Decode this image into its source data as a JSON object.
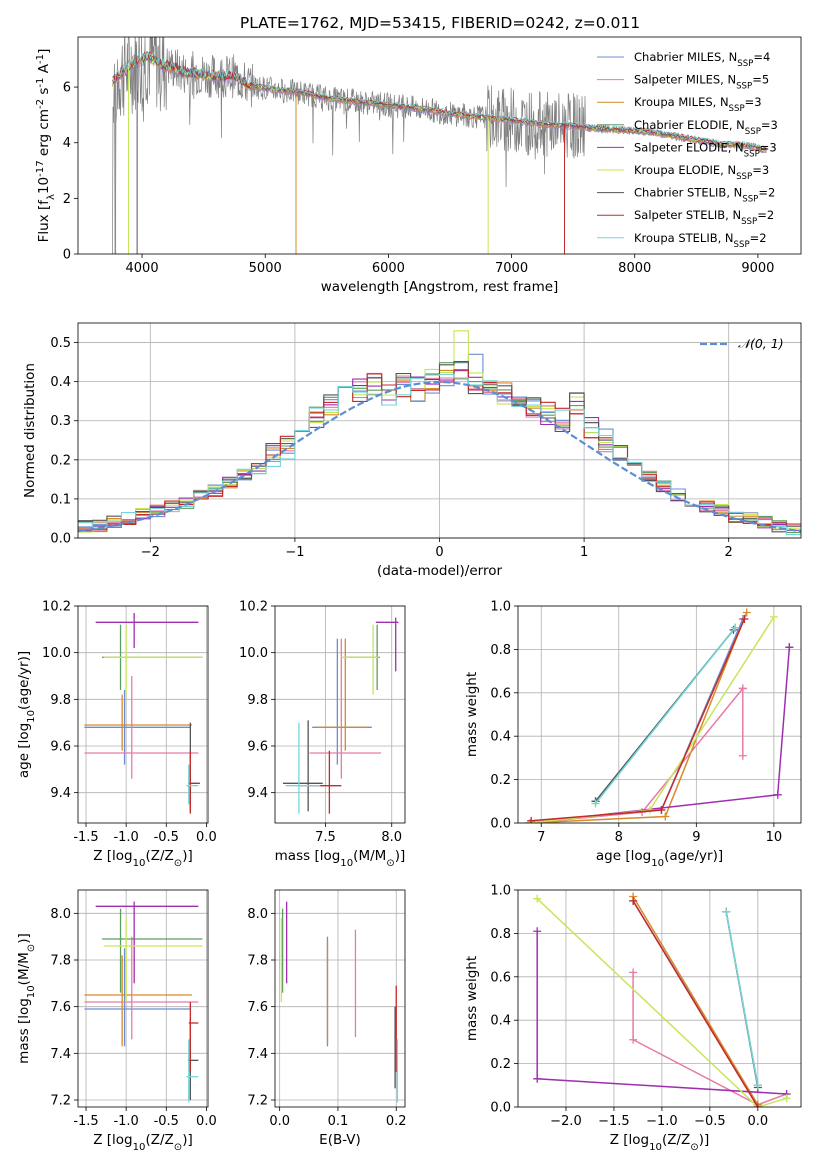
{
  "title": "PLATE=1762, MJD=53415, FIBERID=0242, z=0.011",
  "series": [
    {
      "name": "Chabrier MILES, N$_{SSP}$=4",
      "color": "#6b8fd6"
    },
    {
      "name": "Salpeter MILES, N$_{SSP}$=5",
      "color": "#e87aa8"
    },
    {
      "name": "Kroupa MILES, N$_{SSP}$=3",
      "color": "#d68a2a"
    },
    {
      "name": "Chabrier ELODIE, N$_{SSP}$=3",
      "color": "#5e9e5e"
    },
    {
      "name": "Salpeter ELODIE, N$_{SSP}$=3",
      "color": "#9e30b0"
    },
    {
      "name": "Kroupa ELODIE, N$_{SSP}$=3",
      "color": "#c6e65a"
    },
    {
      "name": "Chabrier STELIB, N$_{SSP}$=2",
      "color": "#555555"
    },
    {
      "name": "Salpeter STELIB, N$_{SSP}$=2",
      "color": "#c42a2a"
    },
    {
      "name": "Kroupa STELIB, N$_{SSP}$=2",
      "color": "#74d6dc"
    }
  ],
  "chart_data": [
    {
      "id": "spectrum",
      "type": "line",
      "title": "PLATE=1762, MJD=53415, FIBERID=0242, z=0.011",
      "xlabel": "wavelength [Angstrom, rest frame]",
      "ylabel": "Flux [f$_\\lambda$10$^{-17}$ erg cm$^{-2}$ s$^{-1}$ A$^{-1}$]",
      "xlim": [
        3480,
        9350
      ],
      "ylim": [
        0,
        7.8
      ],
      "xticks": [
        4000,
        5000,
        6000,
        7000,
        8000,
        9000
      ],
      "yticks": [
        0,
        2,
        4,
        6
      ],
      "grid": false,
      "legend": "upper right",
      "model_x": [
        3760,
        3850,
        3950,
        4050,
        4150,
        4250,
        4350,
        4450,
        4550,
        4650,
        4750,
        4850,
        4950,
        5100,
        5300,
        5500,
        5700,
        5900,
        6100,
        6300,
        6500,
        6700,
        6900,
        7100,
        7300,
        7500,
        7700,
        7900,
        8100,
        8300,
        8500,
        8700,
        8900,
        9070
      ],
      "model_y": [
        6.2,
        6.6,
        6.9,
        7.1,
        6.8,
        6.7,
        6.5,
        6.5,
        6.4,
        6.4,
        6.4,
        6.1,
        6.0,
        5.9,
        5.8,
        5.6,
        5.5,
        5.4,
        5.3,
        5.2,
        5.05,
        4.95,
        4.85,
        4.75,
        4.65,
        4.6,
        4.5,
        4.45,
        4.4,
        4.25,
        4.1,
        3.95,
        3.9,
        3.75
      ],
      "dips": [
        {
          "x": 3785,
          "series": 0
        },
        {
          "x": 3890,
          "series": 5
        },
        {
          "x": 3960,
          "series": 6
        },
        {
          "x": 5250,
          "series": 2
        },
        {
          "x": 6810,
          "series": 5
        },
        {
          "x": 7430,
          "series": 7
        }
      ]
    },
    {
      "id": "residuals",
      "type": "line",
      "xlabel": "(data-model)/error",
      "ylabel": "Normed distribution",
      "xlim": [
        -2.5,
        2.5
      ],
      "ylim": [
        0,
        0.55
      ],
      "xticks": [
        -2,
        -1,
        0,
        1,
        2
      ],
      "xtick_labels": [
        "−2",
        "−1",
        "0",
        "1",
        "2"
      ],
      "yticks": [
        0.0,
        0.1,
        0.2,
        0.3,
        0.4,
        0.5
      ],
      "ytick_labels": [
        "0.0",
        "0.1",
        "0.2",
        "0.3",
        "0.4",
        "0.5"
      ],
      "grid": true,
      "legend": "upper right",
      "gauss_label": "𝒩(0, 1)",
      "bin_centers": [
        -2.45,
        -2.35,
        -2.25,
        -2.15,
        -2.05,
        -1.95,
        -1.85,
        -1.75,
        -1.65,
        -1.55,
        -1.45,
        -1.35,
        -1.25,
        -1.15,
        -1.05,
        -0.95,
        -0.85,
        -0.75,
        -0.65,
        -0.55,
        -0.45,
        -0.35,
        -0.25,
        -0.15,
        -0.05,
        0.05,
        0.15,
        0.25,
        0.35,
        0.45,
        0.55,
        0.65,
        0.75,
        0.85,
        0.95,
        1.05,
        1.15,
        1.25,
        1.35,
        1.45,
        1.55,
        1.65,
        1.75,
        1.85,
        1.95,
        2.05,
        2.15,
        2.25,
        2.35,
        2.45
      ],
      "hist_base": [
        0.03,
        0.03,
        0.04,
        0.05,
        0.06,
        0.07,
        0.08,
        0.09,
        0.11,
        0.12,
        0.14,
        0.16,
        0.18,
        0.21,
        0.23,
        0.27,
        0.31,
        0.34,
        0.37,
        0.38,
        0.39,
        0.37,
        0.39,
        0.38,
        0.4,
        0.42,
        0.43,
        0.4,
        0.38,
        0.37,
        0.35,
        0.33,
        0.32,
        0.3,
        0.34,
        0.28,
        0.25,
        0.22,
        0.19,
        0.16,
        0.13,
        0.11,
        0.09,
        0.08,
        0.07,
        0.05,
        0.05,
        0.04,
        0.03,
        0.02
      ]
    },
    {
      "id": "age_vs_Z",
      "type": "scatter",
      "xlabel": "Z [log$_{10}$(Z/Z$_\\odot$)]",
      "ylabel": "age  [log$_{10}$(age/yr)]",
      "xlim": [
        -1.6,
        0.02
      ],
      "ylim": [
        9.27,
        10.2
      ],
      "xticks": [
        -1.5,
        -1.0,
        -0.5,
        0.0
      ],
      "yticks": [
        9.4,
        9.6,
        9.8,
        10.0,
        10.2
      ],
      "grid": true,
      "points": [
        {
          "s": 0,
          "x": -1.02,
          "y": 9.68,
          "xlo": -1.52,
          "xhi": -0.2,
          "ylo": 9.52,
          "yhi": 9.84
        },
        {
          "s": 1,
          "x": -0.93,
          "y": 9.57,
          "xlo": -1.52,
          "xhi": -0.1,
          "ylo": 9.46,
          "yhi": 9.9
        },
        {
          "s": 2,
          "x": -1.05,
          "y": 9.69,
          "xlo": -1.52,
          "xhi": -0.18,
          "ylo": 9.58,
          "yhi": 9.82
        },
        {
          "s": 3,
          "x": -1.07,
          "y": 9.98,
          "xlo": -1.3,
          "xhi": -0.05,
          "ylo": 9.84,
          "yhi": 10.12
        },
        {
          "s": 4,
          "x": -0.9,
          "y": 10.13,
          "xlo": -1.38,
          "xhi": -0.1,
          "ylo": 10.02,
          "yhi": 10.17
        },
        {
          "s": 5,
          "x": -1.0,
          "y": 9.98,
          "xlo": -1.28,
          "xhi": -0.05,
          "ylo": 9.82,
          "yhi": 10.12
        },
        {
          "s": 6,
          "x": -0.2,
          "y": 9.44,
          "xlo": -0.23,
          "xhi": -0.08,
          "ylo": 9.32,
          "yhi": 9.7
        },
        {
          "s": 7,
          "x": -0.2,
          "y": 9.44,
          "xlo": -0.22,
          "xhi": -0.1,
          "ylo": 9.31,
          "yhi": 9.58
        },
        {
          "s": 8,
          "x": -0.22,
          "y": 9.43,
          "xlo": -0.25,
          "xhi": -0.1,
          "ylo": 9.35,
          "yhi": 9.52
        }
      ]
    },
    {
      "id": "age_vs_mass",
      "type": "scatter",
      "xlabel": "mass [log$_{10}$(M/M$_\\odot$)]",
      "ylabel": "",
      "xlim": [
        7.12,
        8.1
      ],
      "ylim": [
        9.27,
        10.2
      ],
      "xticks": [
        7.5,
        8.0
      ],
      "yticks": [
        9.4,
        9.6,
        9.8,
        10.0,
        10.2
      ],
      "grid": true,
      "points": [
        {
          "s": 0,
          "x": 7.59,
          "y": 9.68,
          "xlo": 7.4,
          "xhi": 7.85,
          "ylo": 9.52,
          "yhi": 10.06
        },
        {
          "s": 1,
          "x": 7.62,
          "y": 9.57,
          "xlo": 7.38,
          "xhi": 7.92,
          "ylo": 9.46,
          "yhi": 10.06
        },
        {
          "s": 2,
          "x": 7.65,
          "y": 9.68,
          "xlo": 7.43,
          "xhi": 7.82,
          "ylo": 9.58,
          "yhi": 10.06
        },
        {
          "s": 3,
          "x": 7.89,
          "y": 9.98,
          "xlo": 7.65,
          "xhi": 7.91,
          "ylo": 9.84,
          "yhi": 10.12
        },
        {
          "s": 4,
          "x": 8.03,
          "y": 10.13,
          "xlo": 7.88,
          "xhi": 8.05,
          "ylo": 9.92,
          "yhi": 10.15
        },
        {
          "s": 5,
          "x": 7.86,
          "y": 9.98,
          "xlo": 7.62,
          "xhi": 7.9,
          "ylo": 9.82,
          "yhi": 10.12
        },
        {
          "s": 6,
          "x": 7.37,
          "y": 9.44,
          "xlo": 7.18,
          "xhi": 7.48,
          "ylo": 9.32,
          "yhi": 9.71
        },
        {
          "s": 7,
          "x": 7.53,
          "y": 9.43,
          "xlo": 7.3,
          "xhi": 7.62,
          "ylo": 9.31,
          "yhi": 9.58
        },
        {
          "s": 8,
          "x": 7.3,
          "y": 9.43,
          "xlo": 7.2,
          "xhi": 7.46,
          "ylo": 9.31,
          "yhi": 9.7
        }
      ]
    },
    {
      "id": "weight_vs_age",
      "type": "line",
      "xlabel": "age  [log$_{10}$(age/yr)]",
      "ylabel": "mass weight",
      "xlim": [
        6.7,
        10.35
      ],
      "ylim": [
        0,
        1
      ],
      "xticks": [
        7,
        8,
        9,
        10
      ],
      "yticks": [
        0.0,
        0.2,
        0.4,
        0.6,
        0.8,
        1.0
      ],
      "grid": true,
      "series_points": [
        {
          "s": 0,
          "x": [
            6.85,
            8.55,
            9.6
          ],
          "y": [
            0.0,
            0.06,
            0.94
          ]
        },
        {
          "s": 1,
          "x": [
            6.85,
            8.3,
            9.6,
            9.6,
            9.6
          ],
          "y": [
            0.0,
            0.05,
            0.62,
            0.31,
            0.62
          ]
        },
        {
          "s": 2,
          "x": [
            6.85,
            8.6,
            9.65
          ],
          "y": [
            0.0,
            0.03,
            0.97
          ]
        },
        {
          "s": 3,
          "x": [
            7.7,
            9.5
          ],
          "y": [
            0.1,
            0.9
          ]
        },
        {
          "s": 4,
          "x": [
            6.85,
            10.05,
            10.2,
            10.2
          ],
          "y": [
            0.0,
            0.13,
            0.81,
            0.81
          ]
        },
        {
          "s": 5,
          "x": [
            6.85,
            8.4,
            10.0
          ],
          "y": [
            0.0,
            0.06,
            0.95
          ]
        },
        {
          "s": 6,
          "x": [
            7.7,
            9.48
          ],
          "y": [
            0.1,
            0.89
          ]
        },
        {
          "s": 7,
          "x": [
            6.87,
            8.55,
            9.62
          ],
          "y": [
            0.01,
            0.06,
            0.94
          ]
        },
        {
          "s": 8,
          "x": [
            7.7,
            9.5
          ],
          "y": [
            0.09,
            0.9
          ]
        }
      ]
    },
    {
      "id": "mass_vs_Z",
      "type": "scatter",
      "xlabel": "Z [log$_{10}$(Z/Z$_\\odot$)]",
      "ylabel": "mass [log$_{10}$(M/M$_\\odot$)]",
      "xlim": [
        -1.6,
        0.02
      ],
      "ylim": [
        7.17,
        8.1
      ],
      "xticks": [
        -1.5,
        -1.0,
        -0.5,
        0.0
      ],
      "yticks": [
        7.2,
        7.4,
        7.6,
        7.8,
        8.0
      ],
      "grid": true,
      "points": [
        {
          "s": 0,
          "x": -1.02,
          "y": 7.59,
          "xlo": -1.52,
          "xhi": -0.2,
          "ylo": 7.43,
          "yhi": 7.85
        },
        {
          "s": 1,
          "x": -0.93,
          "y": 7.62,
          "xlo": -1.52,
          "xhi": -0.1,
          "ylo": 7.46,
          "yhi": 7.9
        },
        {
          "s": 2,
          "x": -1.05,
          "y": 7.65,
          "xlo": -1.52,
          "xhi": -0.18,
          "ylo": 7.43,
          "yhi": 7.82
        },
        {
          "s": 3,
          "x": -1.07,
          "y": 7.89,
          "xlo": -1.3,
          "xhi": -0.05,
          "ylo": 7.66,
          "yhi": 8.02
        },
        {
          "s": 4,
          "x": -0.9,
          "y": 8.03,
          "xlo": -1.38,
          "xhi": -0.1,
          "ylo": 7.7,
          "yhi": 8.05
        },
        {
          "s": 5,
          "x": -1.0,
          "y": 7.86,
          "xlo": -1.28,
          "xhi": -0.05,
          "ylo": 7.62,
          "yhi": 7.98
        },
        {
          "s": 6,
          "x": -0.2,
          "y": 7.37,
          "xlo": -0.23,
          "xhi": -0.1,
          "ylo": 7.2,
          "yhi": 7.55
        },
        {
          "s": 7,
          "x": -0.2,
          "y": 7.53,
          "xlo": -0.22,
          "xhi": -0.1,
          "ylo": 7.32,
          "yhi": 7.62
        },
        {
          "s": 8,
          "x": -0.22,
          "y": 7.3,
          "xlo": -0.25,
          "xhi": -0.1,
          "ylo": 7.19,
          "yhi": 7.46
        }
      ]
    },
    {
      "id": "mass_vs_ebv",
      "type": "scatter",
      "xlabel": "E(B-V)",
      "ylabel": "",
      "xlim": [
        -0.008,
        0.215
      ],
      "ylim": [
        7.17,
        8.1
      ],
      "xticks": [
        0.0,
        0.1,
        0.2
      ],
      "xtick_labels": [
        "0.0",
        "0.1",
        "0.2"
      ],
      "yticks": [
        7.2,
        7.4,
        7.6,
        7.8,
        8.0
      ],
      "grid": true,
      "points": [
        {
          "s": 0,
          "x": 0.082,
          "y": 7.59,
          "ylo": 7.43,
          "yhi": 7.9
        },
        {
          "s": 1,
          "x": 0.13,
          "y": 7.62,
          "ylo": 7.47,
          "yhi": 7.93
        },
        {
          "s": 2,
          "x": 0.082,
          "y": 7.65,
          "ylo": 7.44,
          "yhi": 7.88
        },
        {
          "s": 3,
          "x": 0.005,
          "y": 7.89,
          "ylo": 7.66,
          "yhi": 8.02
        },
        {
          "s": 4,
          "x": 0.012,
          "y": 8.03,
          "ylo": 7.7,
          "yhi": 8.05
        },
        {
          "s": 5,
          "x": 0.003,
          "y": 7.86,
          "ylo": 7.62,
          "yhi": 7.98
        },
        {
          "s": 6,
          "x": 0.198,
          "y": 7.37,
          "ylo": 7.25,
          "yhi": 7.6
        },
        {
          "s": 7,
          "x": 0.2,
          "y": 7.53,
          "ylo": 7.32,
          "yhi": 7.69
        },
        {
          "s": 8,
          "x": 0.202,
          "y": 7.3,
          "ylo": 7.19,
          "yhi": 7.46
        }
      ]
    },
    {
      "id": "weight_vs_Z",
      "type": "line",
      "xlabel": "Z [log$_{10}$(Z/Z$_\\odot$)]",
      "ylabel": "mass weight",
      "xlim": [
        -2.5,
        0.45
      ],
      "ylim": [
        0,
        1
      ],
      "xticks": [
        -2.0,
        -1.5,
        -1.0,
        -0.5,
        0.0
      ],
      "xtick_labels": [
        "−2.0",
        "−1.5",
        "−1.0",
        "−0.5",
        "0.0"
      ],
      "yticks": [
        0.0,
        0.2,
        0.4,
        0.6,
        0.8,
        1.0
      ],
      "grid": true,
      "series_points": [
        {
          "s": 0,
          "x": [
            -1.3,
            0.0
          ],
          "y": [
            0.95,
            0.01
          ]
        },
        {
          "s": 1,
          "x": [
            -1.3,
            -1.3,
            0.0,
            0.3
          ],
          "y": [
            0.62,
            0.31,
            0.01,
            0.06
          ]
        },
        {
          "s": 2,
          "x": [
            -1.3,
            0.0
          ],
          "y": [
            0.97,
            0.01
          ]
        },
        {
          "s": 3,
          "x": [
            -0.33,
            0.0
          ],
          "y": [
            0.9,
            0.1
          ]
        },
        {
          "s": 4,
          "x": [
            -2.3,
            -2.3,
            0.3
          ],
          "y": [
            0.81,
            0.13,
            0.06
          ]
        },
        {
          "s": 5,
          "x": [
            -2.3,
            0.0,
            0.3
          ],
          "y": [
            0.96,
            0.0,
            0.04
          ]
        },
        {
          "s": 6,
          "x": [
            -0.33,
            0.0
          ],
          "y": [
            0.9,
            0.09
          ]
        },
        {
          "s": 7,
          "x": [
            -1.3,
            0.0
          ],
          "y": [
            0.95,
            0.0
          ]
        },
        {
          "s": 8,
          "x": [
            -0.33,
            0.0
          ],
          "y": [
            0.9,
            0.1
          ]
        }
      ]
    }
  ]
}
